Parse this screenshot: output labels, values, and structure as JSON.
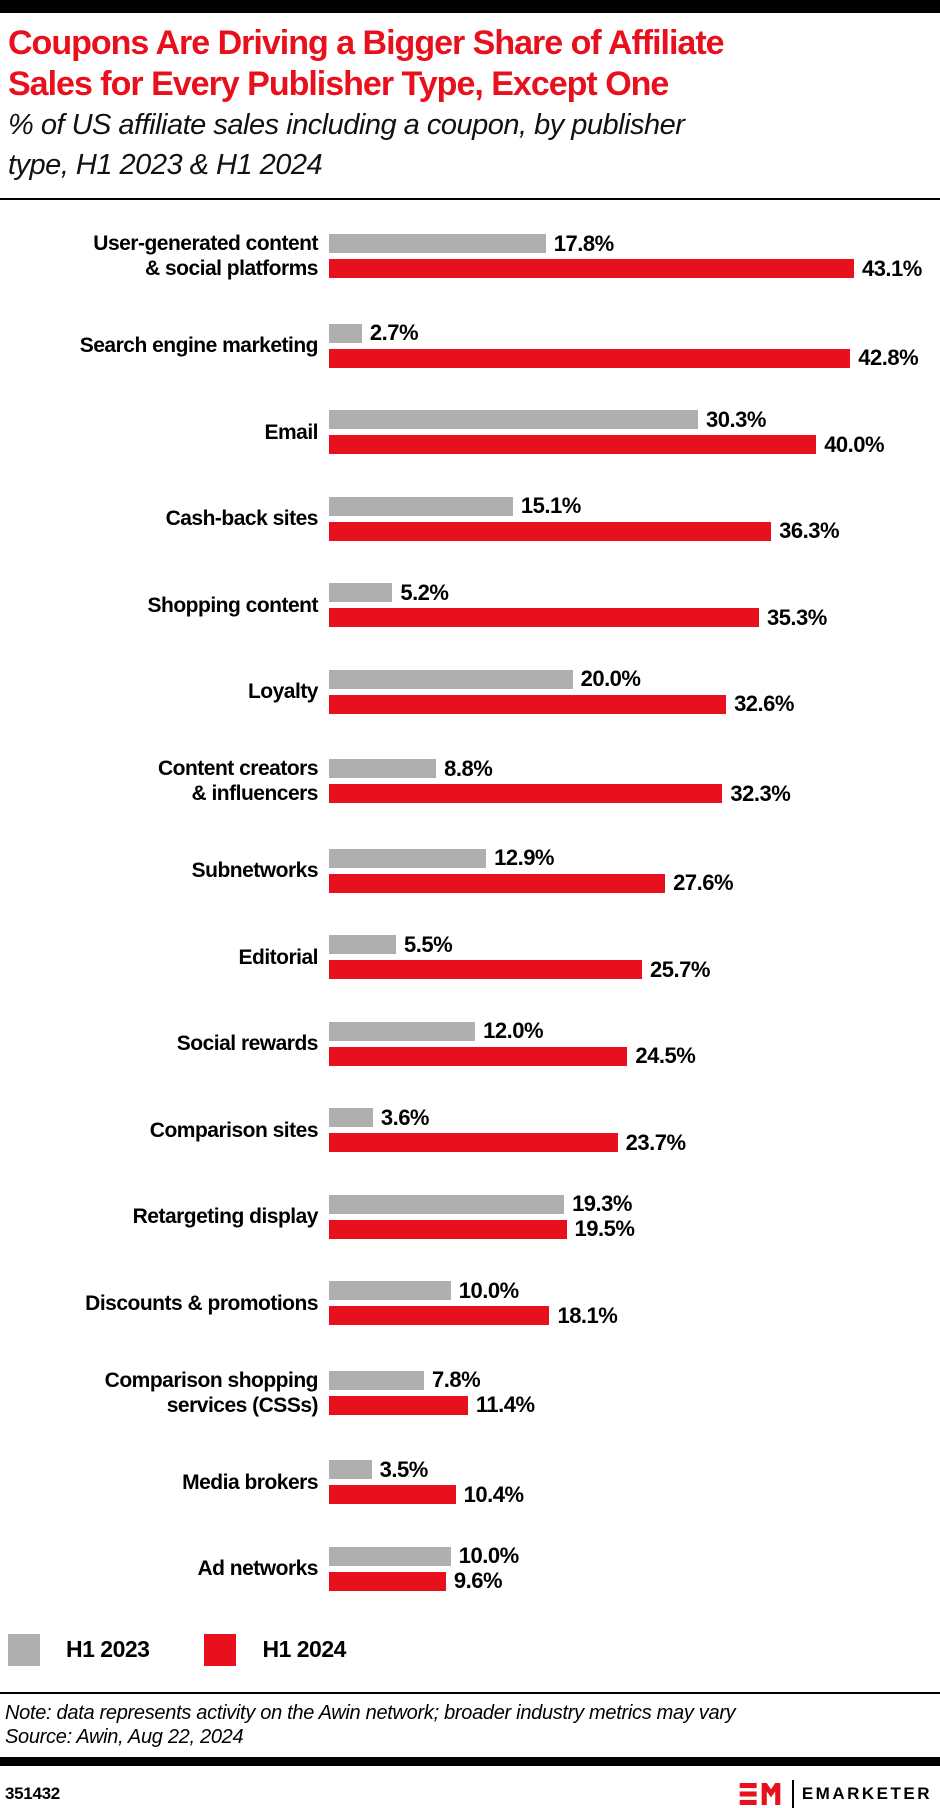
{
  "header": {
    "title_line1": "Coupons Are Driving a Bigger Share of Affiliate",
    "title_line2": "Sales for Every Publisher Type, Except One",
    "subtitle_line1": "% of US affiliate sales including a coupon, by publisher",
    "subtitle_line2": "type, H1 2023 & H1 2024"
  },
  "chart_data": {
    "type": "bar",
    "orientation": "horizontal",
    "title": "Coupons Are Driving a Bigger Share of Affiliate Sales for Every Publisher Type, Except One",
    "subtitle": "% of US affiliate sales including a coupon, by publisher type, H1 2023 & H1 2024",
    "unit": "%",
    "xlim": [
      0,
      45
    ],
    "grid": false,
    "legend_position": "bottom",
    "categories": [
      "User-generated content\n& social platforms",
      "Search engine marketing",
      "Email",
      "Cash-back sites",
      "Shopping content",
      "Loyalty",
      "Content creators\n& influencers",
      "Subnetworks",
      "Editorial",
      "Social rewards",
      "Comparison sites",
      "Retargeting display",
      "Discounts & promotions",
      "Comparison shopping\nservices (CSSs)",
      "Media brokers",
      "Ad networks"
    ],
    "series": [
      {
        "name": "H1 2023",
        "color": "#afafaf",
        "values": [
          17.8,
          2.7,
          30.3,
          15.1,
          5.2,
          20.0,
          8.8,
          12.9,
          5.5,
          12.0,
          3.6,
          19.3,
          10.0,
          7.8,
          3.5,
          10.0
        ]
      },
      {
        "name": "H1 2024",
        "color": "#e8101c",
        "values": [
          43.1,
          42.8,
          40.0,
          36.3,
          35.3,
          32.6,
          32.3,
          27.6,
          25.7,
          24.5,
          23.7,
          19.5,
          18.1,
          11.4,
          10.4,
          9.6
        ]
      }
    ]
  },
  "footer": {
    "note_line1": "Note: data represents activity on the Awin network; broader industry metrics may vary",
    "note_line2": "Source: Awin, Aug 22, 2024",
    "chart_id": "351432",
    "brand": "EMARKETER"
  },
  "colors": {
    "accent_red": "#e8101c",
    "bar_gray": "#afafaf",
    "text_black": "#000000"
  }
}
